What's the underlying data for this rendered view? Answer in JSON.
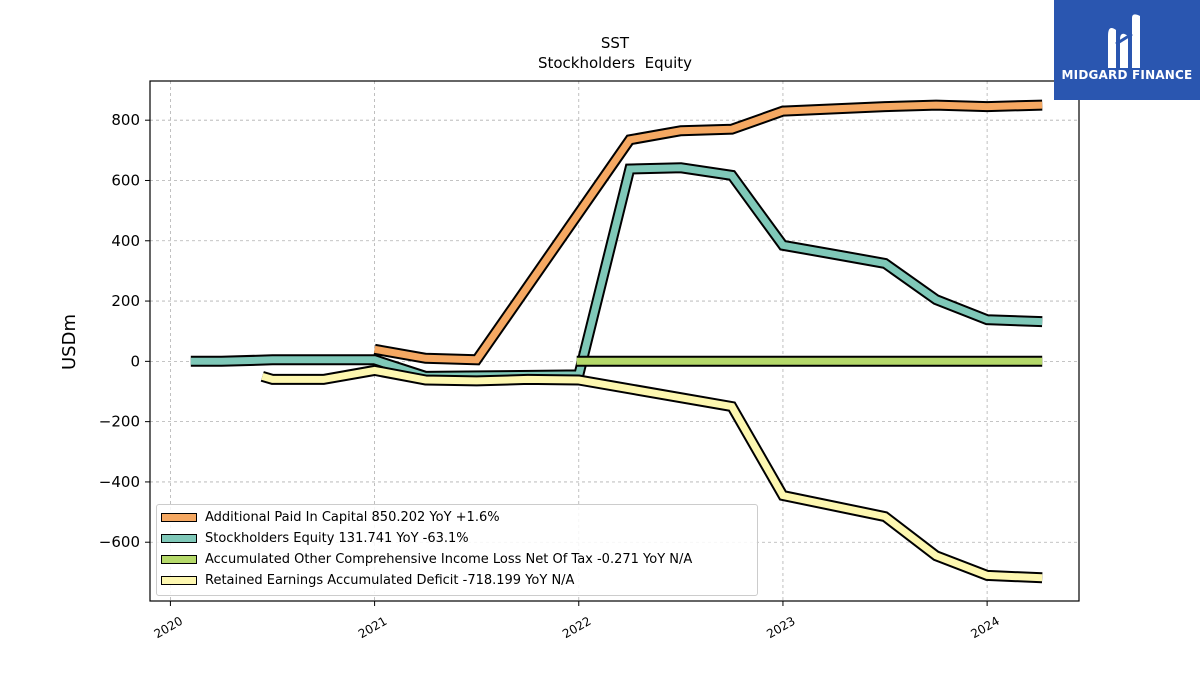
{
  "logo": {
    "text": "MIDGARD FINANCE",
    "color": "#2a56b0"
  },
  "chart_data": {
    "type": "line",
    "title": "SST",
    "subtitle": "Stockholders  Equity",
    "xlabel": "",
    "ylabel": "USDm",
    "xlim": [
      2019.9,
      2024.45
    ],
    "ylim": [
      -795,
      930
    ],
    "x_ticks": [
      2020,
      2021,
      2022,
      2023,
      2024
    ],
    "x_tick_labels": [
      "2020",
      "2021",
      "2022",
      "2023",
      "2024"
    ],
    "y_ticks": [
      800,
      600,
      400,
      200,
      0,
      -200,
      -400,
      -600
    ],
    "y_tick_labels": [
      "800",
      "600",
      "400",
      "200",
      "0",
      "−200",
      "−400",
      "−600"
    ],
    "grid": true,
    "legend_position": "lower-left",
    "series": [
      {
        "name": "Additional Paid In Capital  850.202 YoY +1.6%",
        "color": "#f5a862",
        "x": [
          2021.0,
          2021.25,
          2021.5,
          2022.25,
          2022.5,
          2022.75,
          2023.0,
          2023.5,
          2023.75,
          2024.0,
          2024.27
        ],
        "y": [
          40,
          10,
          5,
          735,
          765,
          770,
          830,
          845,
          850,
          845,
          850
        ]
      },
      {
        "name": "Stockholders Equity  131.741 YoY -63.1%",
        "color": "#7fc8b8",
        "x": [
          2020.1,
          2020.25,
          2020.5,
          2020.75,
          2021.0,
          2021.25,
          2022.0,
          2022.25,
          2022.5,
          2022.75,
          2023.0,
          2023.25,
          2023.5,
          2023.75,
          2024.0,
          2024.27
        ],
        "y": [
          0,
          0,
          5,
          5,
          5,
          -50,
          -45,
          638,
          642,
          617,
          385,
          355,
          325,
          205,
          138,
          132
        ]
      },
      {
        "name": "Accumulated Other Comprehensive Income Loss Net Of Tax  -0.271 YoY N/A",
        "color": "#b5d96a",
        "x": [
          2021.99,
          2024.27
        ],
        "y": [
          0,
          0
        ]
      },
      {
        "name": "Retained Earnings Accumulated Deficit  -718.199 YoY N/A",
        "color": "#fdf7b0",
        "x": [
          2020.45,
          2020.5,
          2020.75,
          2021.0,
          2021.25,
          2021.5,
          2021.75,
          2022.0,
          2022.75,
          2023.0,
          2023.5,
          2023.75,
          2024.0,
          2024.27
        ],
        "y": [
          -50,
          -60,
          -60,
          -30,
          -62,
          -65,
          -60,
          -62,
          -150,
          -445,
          -515,
          -645,
          -710,
          -718
        ]
      }
    ]
  }
}
